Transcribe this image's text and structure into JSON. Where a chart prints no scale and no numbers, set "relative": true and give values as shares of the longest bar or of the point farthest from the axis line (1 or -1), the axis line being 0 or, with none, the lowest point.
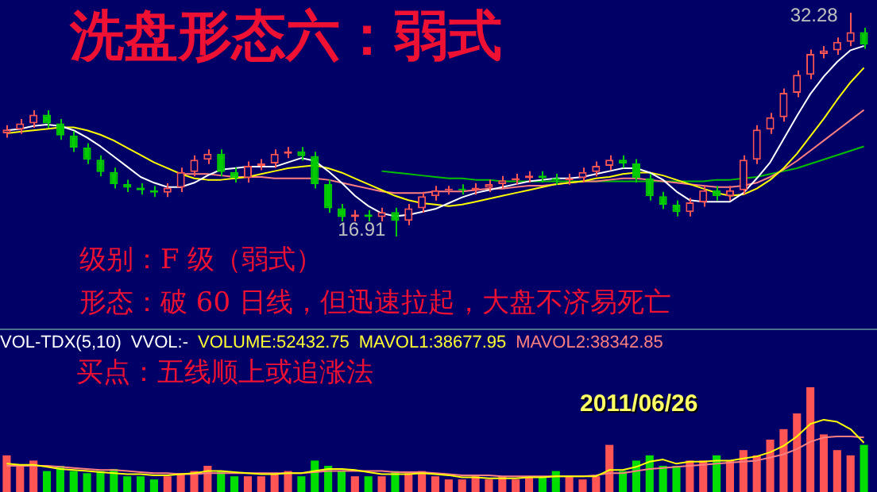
{
  "chart_data": [
    {
      "type": "candlestick",
      "title": "洗盘形态六：弱式",
      "categories": [
        null,
        null,
        null,
        null,
        null,
        null,
        null,
        null,
        null,
        null,
        null,
        null,
        null,
        null,
        null,
        null,
        null,
        null,
        null,
        null,
        null,
        null,
        null,
        null,
        null,
        null,
        null,
        null,
        null,
        null,
        null,
        null,
        null,
        null,
        null,
        null,
        null,
        null,
        null,
        null,
        null,
        null,
        null,
        null,
        null,
        null,
        null,
        null,
        null,
        null,
        null,
        null,
        null,
        null,
        null,
        null,
        null,
        null,
        null,
        null,
        null,
        null,
        null,
        null,
        null
      ],
      "ohlc": [
        [
          24.0,
          24.56,
          23.7,
          24.26
        ],
        [
          24.26,
          24.98,
          23.96,
          24.68
        ],
        [
          24.68,
          25.57,
          24.38,
          25.27
        ],
        [
          25.27,
          25.57,
          24.38,
          24.68
        ],
        [
          24.68,
          24.98,
          23.55,
          23.85
        ],
        [
          23.85,
          24.15,
          22.71,
          23.01
        ],
        [
          23.01,
          23.31,
          21.88,
          22.18
        ],
        [
          22.18,
          22.48,
          21.04,
          21.34
        ],
        [
          21.34,
          21.64,
          20.21,
          20.51
        ],
        [
          20.51,
          20.81,
          19.96,
          20.26
        ],
        [
          20.26,
          20.56,
          19.79,
          20.09
        ],
        [
          20.09,
          20.39,
          19.62,
          19.92
        ],
        [
          19.92,
          20.56,
          19.62,
          20.26
        ],
        [
          20.26,
          21.64,
          19.96,
          21.34
        ],
        [
          21.34,
          22.48,
          21.04,
          22.18
        ],
        [
          22.18,
          22.89,
          21.88,
          22.59
        ],
        [
          22.59,
          22.89,
          21.04,
          21.34
        ],
        [
          21.34,
          21.64,
          20.62,
          20.92
        ],
        [
          20.92,
          22.06,
          20.62,
          21.76
        ],
        [
          21.76,
          22.23,
          21.46,
          21.93
        ],
        [
          21.93,
          22.89,
          21.63,
          22.59
        ],
        [
          22.59,
          23.06,
          22.29,
          22.76
        ],
        [
          22.76,
          23.06,
          22.13,
          22.43
        ],
        [
          22.43,
          22.73,
          20.21,
          20.51
        ],
        [
          20.51,
          20.81,
          18.54,
          18.84
        ],
        [
          18.84,
          19.14,
          17.95,
          18.25
        ],
        [
          18.25,
          18.72,
          17.95,
          18.42
        ],
        [
          18.42,
          18.72,
          17.95,
          18.25
        ],
        [
          18.25,
          18.89,
          17.95,
          18.59
        ],
        [
          18.59,
          18.89,
          16.91,
          17.99
        ],
        [
          17.99,
          19.14,
          17.69,
          18.84
        ],
        [
          18.84,
          19.97,
          18.54,
          19.67
        ],
        [
          19.67,
          20.39,
          19.37,
          20.09
        ],
        [
          20.09,
          20.39,
          19.79,
          20.2
        ],
        [
          20.2,
          20.5,
          19.79,
          20.09
        ],
        [
          20.09,
          20.56,
          19.79,
          20.26
        ],
        [
          20.26,
          20.81,
          19.96,
          20.51
        ],
        [
          20.51,
          21.06,
          20.21,
          20.76
        ],
        [
          20.76,
          21.22,
          20.46,
          20.92
        ],
        [
          20.92,
          21.39,
          20.62,
          21.09
        ],
        [
          21.09,
          21.39,
          20.62,
          20.92
        ],
        [
          20.92,
          21.22,
          20.46,
          20.76
        ],
        [
          20.76,
          21.22,
          20.46,
          20.92
        ],
        [
          20.92,
          21.64,
          20.62,
          21.34
        ],
        [
          21.34,
          22.06,
          21.04,
          21.76
        ],
        [
          21.76,
          22.48,
          21.46,
          22.18
        ],
        [
          22.18,
          22.48,
          21.63,
          21.93
        ],
        [
          21.93,
          22.23,
          20.62,
          20.92
        ],
        [
          20.92,
          21.22,
          19.37,
          19.67
        ],
        [
          19.67,
          19.97,
          18.79,
          19.09
        ],
        [
          19.09,
          19.39,
          18.29,
          18.59
        ],
        [
          18.59,
          19.55,
          18.29,
          19.25
        ],
        [
          19.25,
          20.39,
          18.95,
          20.09
        ],
        [
          20.09,
          20.39,
          19.37,
          19.67
        ],
        [
          19.67,
          20.39,
          19.37,
          20.09
        ],
        [
          20.09,
          22.48,
          19.79,
          22.18
        ],
        [
          22.18,
          24.56,
          21.88,
          24.26
        ],
        [
          24.26,
          25.4,
          23.96,
          25.1
        ],
        [
          25.1,
          27.07,
          24.8,
          26.77
        ],
        [
          26.77,
          28.32,
          26.47,
          28.02
        ],
        [
          28.02,
          29.74,
          27.72,
          29.44
        ],
        [
          29.44,
          29.99,
          29.14,
          29.69
        ],
        [
          29.69,
          30.58,
          29.39,
          30.28
        ],
        [
          30.28,
          32.28,
          29.98,
          30.94
        ],
        [
          30.94,
          31.24,
          29.8,
          30.1
        ]
      ],
      "series": [
        {
          "type": "line",
          "color": "#ffffff",
          "values": [
            24.2,
            24.3,
            24.5,
            24.6,
            24.5,
            24.2,
            23.7,
            23.1,
            22.4,
            21.7,
            21.0,
            20.6,
            20.3,
            20.3,
            20.6,
            21.1,
            21.5,
            21.6,
            21.7,
            21.7,
            21.7,
            22.0,
            22.3,
            22.1,
            21.4,
            20.6,
            19.7,
            19.0,
            18.5,
            18.3,
            18.4,
            18.6,
            18.8,
            19.2,
            19.6,
            19.9,
            20.1,
            20.3,
            20.5,
            20.7,
            20.8,
            20.9,
            20.9,
            21.0,
            21.2,
            21.4,
            21.6,
            21.6,
            21.3,
            20.8,
            20.0,
            19.4,
            19.3,
            19.3,
            19.3,
            19.9,
            20.9,
            22.0,
            23.6,
            25.2,
            26.7,
            27.9,
            28.9,
            29.7,
            30.0
          ]
        },
        {
          "type": "line",
          "color": "#ffff00",
          "values": [
            24.0,
            24.1,
            24.2,
            24.3,
            24.4,
            24.4,
            24.2,
            23.9,
            23.5,
            23.0,
            22.5,
            22.0,
            21.6,
            21.2,
            20.9,
            20.8,
            20.8,
            20.9,
            21.0,
            21.2,
            21.4,
            21.6,
            21.7,
            21.8,
            21.6,
            21.3,
            20.9,
            20.5,
            20.1,
            19.7,
            19.4,
            19.2,
            19.1,
            19.0,
            19.1,
            19.3,
            19.5,
            19.7,
            19.9,
            20.1,
            20.3,
            20.5,
            20.6,
            20.7,
            20.9,
            21.0,
            21.2,
            21.3,
            21.3,
            21.1,
            20.8,
            20.5,
            20.2,
            19.9,
            19.7,
            19.8,
            20.2,
            20.8,
            21.6,
            22.6,
            23.8,
            25.0,
            26.3,
            27.5,
            28.5
          ]
        },
        {
          "type": "line",
          "color": "#ff8080",
          "values": [
            null,
            null,
            null,
            null,
            null,
            null,
            null,
            null,
            null,
            null,
            null,
            null,
            null,
            21.2,
            21.2,
            21.2,
            21.1,
            21.0,
            21.0,
            21.0,
            20.9,
            20.9,
            20.9,
            20.9,
            20.8,
            20.6,
            20.4,
            20.2,
            20.0,
            19.9,
            19.9,
            19.9,
            20.0,
            20.0,
            20.0,
            20.1,
            20.2,
            20.2,
            20.3,
            20.4,
            20.4,
            20.5,
            20.6,
            20.7,
            20.7,
            20.8,
            20.9,
            20.9,
            20.8,
            20.7,
            20.6,
            20.5,
            20.4,
            20.3,
            20.3,
            20.4,
            20.6,
            21.0,
            21.5,
            22.1,
            22.8,
            23.5,
            24.2,
            24.9,
            25.6
          ]
        },
        {
          "type": "line",
          "color": "#00c000",
          "values": [
            null,
            null,
            null,
            null,
            null,
            null,
            null,
            null,
            null,
            null,
            null,
            null,
            null,
            null,
            null,
            null,
            null,
            null,
            null,
            null,
            null,
            null,
            null,
            null,
            null,
            null,
            null,
            null,
            21.4,
            21.3,
            21.2,
            21.1,
            21.0,
            20.9,
            20.9,
            20.8,
            20.8,
            20.7,
            20.7,
            20.7,
            20.7,
            20.7,
            20.7,
            20.7,
            20.7,
            20.7,
            20.7,
            20.7,
            20.7,
            20.7,
            20.7,
            20.7,
            20.7,
            20.8,
            20.8,
            20.9,
            21.0,
            21.2,
            21.4,
            21.6,
            21.9,
            22.2,
            22.5,
            22.8,
            23.1
          ]
        }
      ],
      "annotations": [
        "32.28",
        "16.91",
        "级别：F 级（弱式）",
        "形态：破 60 日线，但迅速拉起，大盘不济易死亡"
      ]
    },
    {
      "type": "bar",
      "relative": true,
      "categories": [
        null,
        null,
        null,
        null,
        null,
        null,
        null,
        null,
        null,
        null,
        null,
        null,
        null,
        null,
        null,
        null,
        null,
        null,
        null,
        null,
        null,
        null,
        null,
        null,
        null,
        null,
        null,
        null,
        null,
        null,
        null,
        null,
        null,
        null,
        null,
        null,
        null,
        null,
        null,
        null,
        null,
        null,
        null,
        null,
        null,
        null,
        null,
        null,
        null,
        null,
        null,
        null,
        null,
        null,
        null,
        null,
        null,
        null,
        null,
        null,
        null,
        null,
        null,
        null,
        null
      ],
      "series": [
        {
          "type": "bar",
          "values": [
            0.35,
            0.25,
            0.3,
            0.2,
            0.25,
            0.2,
            0.18,
            0.2,
            0.22,
            0.15,
            0.15,
            0.12,
            0.15,
            0.18,
            0.2,
            0.25,
            0.2,
            0.15,
            0.15,
            0.15,
            0.18,
            0.2,
            0.15,
            0.3,
            0.25,
            0.2,
            0.15,
            0.15,
            0.15,
            0.2,
            0.18,
            0.2,
            0.15,
            0.12,
            0.12,
            0.15,
            0.12,
            0.15,
            0.12,
            0.15,
            0.15,
            0.2,
            0.15,
            0.12,
            0.15,
            0.45,
            0.2,
            0.3,
            0.35,
            0.25,
            0.25,
            0.3,
            0.3,
            0.35,
            0.3,
            0.4,
            0.35,
            0.5,
            0.6,
            0.75,
            1.0,
            0.55,
            0.4,
            0.35,
            0.45
          ],
          "colors": [
            "#ff5555",
            "#ff5555",
            "#ff5555",
            "#00dd00",
            "#00dd00",
            "#00dd00",
            "#00dd00",
            "#00dd00",
            "#00dd00",
            "#00dd00",
            "#00dd00",
            "#00dd00",
            "#ff5555",
            "#ff5555",
            "#ff5555",
            "#ff5555",
            "#00dd00",
            "#00dd00",
            "#ff5555",
            "#ff5555",
            "#ff5555",
            "#ff5555",
            "#00dd00",
            "#00dd00",
            "#00dd00",
            "#00dd00",
            "#ff5555",
            "#00dd00",
            "#ff5555",
            "#00dd00",
            "#ff5555",
            "#ff5555",
            "#ff5555",
            "#ff5555",
            "#ff5555",
            "#ff5555",
            "#ff5555",
            "#ff5555",
            "#ff5555",
            "#ff5555",
            "#00dd00",
            "#00dd00",
            "#ff5555",
            "#ff5555",
            "#ff5555",
            "#ff5555",
            "#00dd00",
            "#00dd00",
            "#00dd00",
            "#00dd00",
            "#00dd00",
            "#ff5555",
            "#ff5555",
            "#00dd00",
            "#ff5555",
            "#ff5555",
            "#ff5555",
            "#ff5555",
            "#ff5555",
            "#ff5555",
            "#ff5555",
            "#ff5555",
            "#ff5555",
            "#ff5555",
            "#00dd00"
          ]
        },
        {
          "type": "line",
          "color": "#ffff00",
          "values": [
            0.27,
            0.26,
            0.26,
            0.24,
            0.22,
            0.21,
            0.2,
            0.19,
            0.18,
            0.17,
            0.17,
            0.16,
            0.16,
            0.17,
            0.18,
            0.2,
            0.2,
            0.19,
            0.18,
            0.17,
            0.17,
            0.18,
            0.18,
            0.2,
            0.22,
            0.22,
            0.21,
            0.19,
            0.17,
            0.17,
            0.17,
            0.18,
            0.17,
            0.16,
            0.14,
            0.14,
            0.13,
            0.13,
            0.13,
            0.14,
            0.14,
            0.15,
            0.15,
            0.15,
            0.15,
            0.21,
            0.21,
            0.24,
            0.29,
            0.31,
            0.27,
            0.29,
            0.29,
            0.3,
            0.3,
            0.32,
            0.34,
            0.38,
            0.44,
            0.53,
            0.65,
            0.69,
            0.67,
            0.6,
            0.47
          ]
        },
        {
          "type": "line",
          "color": "#ff8080",
          "values": [
            0.25,
            0.25,
            0.25,
            0.25,
            0.24,
            0.23,
            0.22,
            0.21,
            0.21,
            0.2,
            0.19,
            0.18,
            0.18,
            0.17,
            0.17,
            0.18,
            0.18,
            0.18,
            0.18,
            0.18,
            0.18,
            0.18,
            0.18,
            0.19,
            0.2,
            0.2,
            0.2,
            0.2,
            0.2,
            0.19,
            0.19,
            0.19,
            0.18,
            0.17,
            0.16,
            0.16,
            0.16,
            0.15,
            0.15,
            0.15,
            0.15,
            0.15,
            0.15,
            0.15,
            0.16,
            0.18,
            0.18,
            0.2,
            0.22,
            0.23,
            0.24,
            0.25,
            0.26,
            0.27,
            0.28,
            0.29,
            0.3,
            0.33,
            0.36,
            0.41,
            0.48,
            0.52,
            0.53,
            0.53,
            0.52
          ]
        }
      ],
      "annotations": [
        "VOL-TDX(5,10)",
        "VVOL:-",
        "VOLUME:52432.75",
        "MAVOL1:38677.95",
        "MAVOL2:38342.85",
        "买点：五线顺上或追涨法",
        "2011/06/26"
      ]
    }
  ]
}
